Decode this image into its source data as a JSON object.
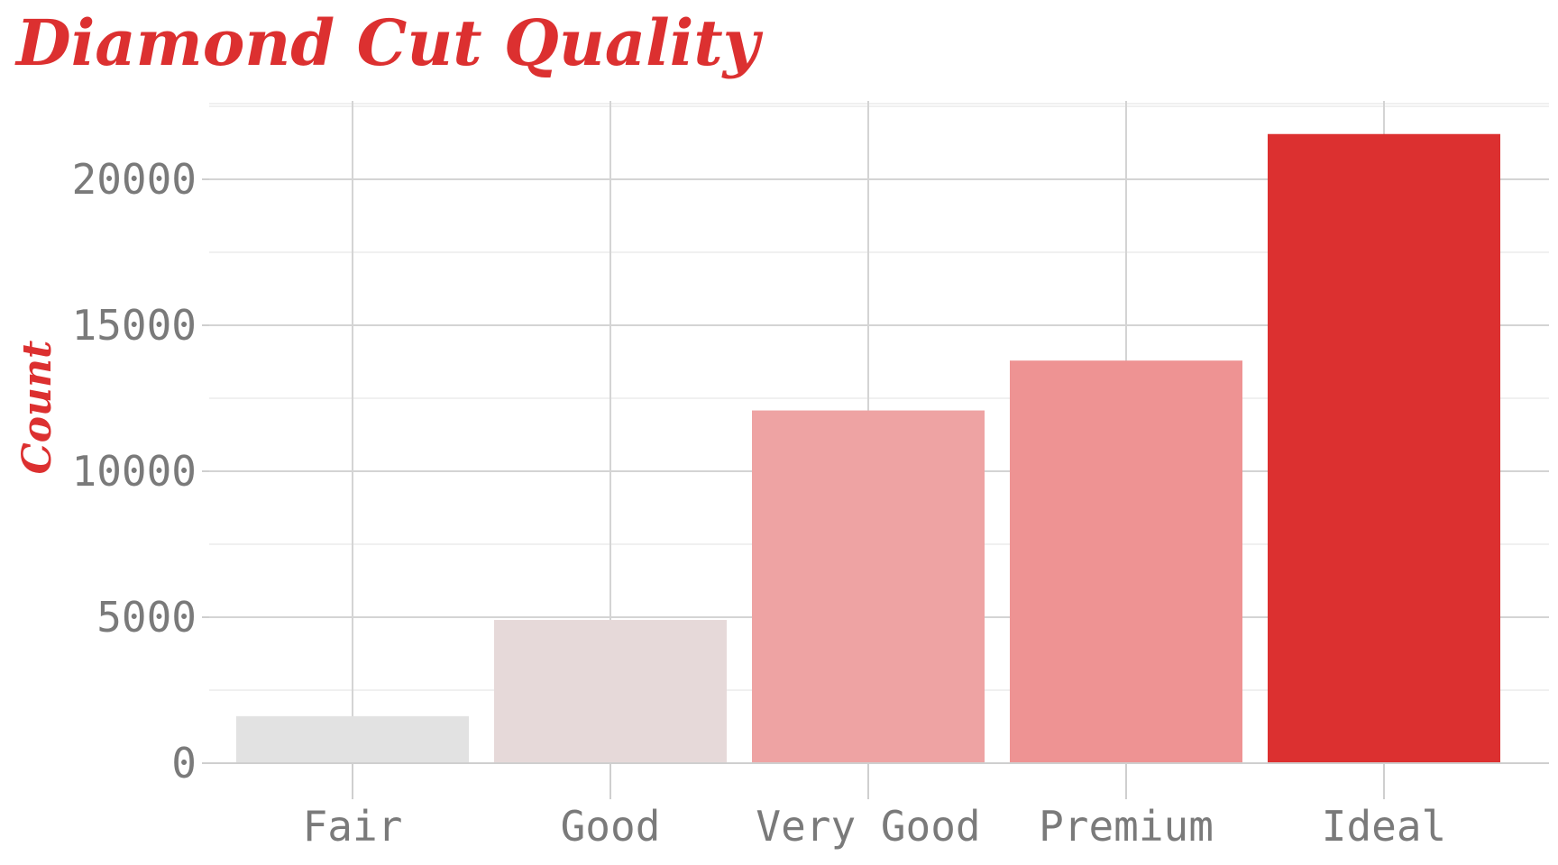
{
  "chart_data": {
    "type": "bar",
    "title": "Diamond Cut Quality",
    "xlabel": "",
    "ylabel": "Count",
    "categories": [
      "Fair",
      "Good",
      "Very Good",
      "Premium",
      "Ideal"
    ],
    "values": [
      1610,
      4906,
      12082,
      13791,
      21551
    ],
    "colors": [
      "#e2e2e2",
      "#e6d9d9",
      "#eea3a3",
      "#ee9393",
      "#dc3030"
    ],
    "ylim": [
      0,
      22500
    ],
    "yticks": [
      0,
      5000,
      10000,
      15000,
      20000
    ],
    "ytick_labels": [
      "0",
      "5000",
      "10000",
      "15000",
      "20000"
    ],
    "grid": true,
    "legend": "none"
  }
}
